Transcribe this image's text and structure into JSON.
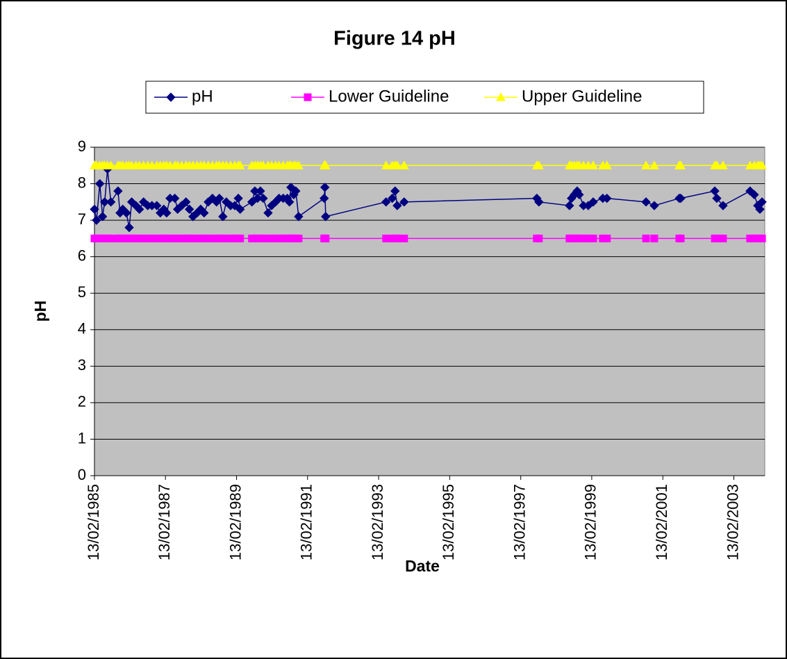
{
  "chart_data": {
    "type": "line",
    "title": "Figure 14 pH",
    "x_label": "Date",
    "y_label": "pH",
    "x": [
      "1985-02-13",
      "1985-03-06",
      "1985-04-09",
      "1985-05-07",
      "1985-05-29",
      "1985-06-27",
      "1985-08-01",
      "1985-10-13",
      "1985-11-03",
      "1985-12-01",
      "1986-01-07",
      "1986-02-05",
      "1986-03-03",
      "1986-04-15",
      "1986-05-21",
      "1986-07-03",
      "1986-08-15",
      "1986-09-27",
      "1986-11-16",
      "1986-12-22",
      "1987-01-27",
      "1987-02-25",
      "1987-04-01",
      "1987-05-20",
      "1987-06-18",
      "1987-07-30",
      "1987-09-12",
      "1987-10-17",
      "1987-11-23",
      "1988-01-04",
      "1988-02-10",
      "1988-03-16",
      "1988-04-28",
      "1988-06-10",
      "1988-07-22",
      "1988-08-20",
      "1988-09-25",
      "1988-10-31",
      "1988-12-13",
      "1989-01-25",
      "1989-03-03",
      "1989-03-22",
      "1989-07-21",
      "1989-08-20",
      "1989-09-17",
      "1989-10-16",
      "1989-11-14",
      "1990-01-03",
      "1990-02-08",
      "1990-03-21",
      "1990-04-26",
      "1990-06-08",
      "1990-07-20",
      "1990-08-11",
      "1990-08-26",
      "1990-09-24",
      "1990-10-15",
      "1990-11-13",
      "1991-08-03",
      "1991-08-10",
      "1991-08-18",
      "1993-04-30",
      "1993-07-03",
      "1993-08-01",
      "1993-08-23",
      "1993-11-02",
      "1997-07-28",
      "1997-08-19",
      "1998-06-29",
      "1998-07-20",
      "1998-08-18",
      "1998-09-16",
      "1998-10-07",
      "1998-11-20",
      "1999-01-08",
      "1999-02-28",
      "1999-06-07",
      "1999-07-19",
      "2000-08-24",
      "2000-11-17",
      "2001-08-01",
      "2001-08-16",
      "2002-08-01",
      "2002-08-22",
      "2002-10-25",
      "2003-07-30",
      "2003-09-11",
      "2003-10-17",
      "2003-11-08",
      "2003-11-30"
    ],
    "series": [
      {
        "name": "pH",
        "color": "#000080",
        "marker": "diamond",
        "values": [
          7.3,
          7.0,
          8.0,
          7.1,
          7.5,
          8.4,
          7.5,
          7.8,
          7.2,
          7.3,
          7.2,
          6.8,
          7.5,
          7.4,
          7.3,
          7.5,
          7.4,
          7.4,
          7.4,
          7.2,
          7.3,
          7.2,
          7.6,
          7.6,
          7.3,
          7.4,
          7.5,
          7.3,
          7.1,
          7.2,
          7.3,
          7.2,
          7.5,
          7.6,
          7.5,
          7.6,
          7.1,
          7.5,
          7.4,
          7.4,
          7.6,
          7.3,
          7.5,
          7.8,
          7.6,
          7.8,
          7.6,
          7.2,
          7.4,
          7.5,
          7.6,
          7.6,
          7.6,
          7.5,
          7.9,
          7.7,
          7.8,
          7.1,
          7.6,
          7.9,
          7.1,
          7.5,
          7.6,
          7.8,
          7.4,
          7.5,
          7.6,
          7.5,
          7.4,
          7.6,
          7.7,
          7.8,
          7.7,
          7.4,
          7.4,
          7.5,
          7.6,
          7.6,
          7.5,
          7.4,
          7.6,
          7.6,
          7.8,
          7.6,
          7.4,
          7.8,
          7.7,
          7.4,
          7.3,
          7.5
        ]
      },
      {
        "name": "Lower Guideline",
        "color": "#ff00ff",
        "marker": "square",
        "values": [
          6.5,
          6.5,
          6.5,
          6.5,
          6.5,
          6.5,
          6.5,
          6.5,
          6.5,
          6.5,
          6.5,
          6.5,
          6.5,
          6.5,
          6.5,
          6.5,
          6.5,
          6.5,
          6.5,
          6.5,
          6.5,
          6.5,
          6.5,
          6.5,
          6.5,
          6.5,
          6.5,
          6.5,
          6.5,
          6.5,
          6.5,
          6.5,
          6.5,
          6.5,
          6.5,
          6.5,
          6.5,
          6.5,
          6.5,
          6.5,
          6.5,
          6.5,
          6.5,
          6.5,
          6.5,
          6.5,
          6.5,
          6.5,
          6.5,
          6.5,
          6.5,
          6.5,
          6.5,
          6.5,
          6.5,
          6.5,
          6.5,
          6.5,
          6.5,
          6.5,
          6.5,
          6.5,
          6.5,
          6.5,
          6.5,
          6.5,
          6.5,
          6.5,
          6.5,
          6.5,
          6.5,
          6.5,
          6.5,
          6.5,
          6.5,
          6.5,
          6.5,
          6.5,
          6.5,
          6.5,
          6.5,
          6.5,
          6.5,
          6.5,
          6.5,
          6.5,
          6.5,
          6.5,
          6.5,
          6.5
        ]
      },
      {
        "name": "Upper Guideline",
        "color": "#ffff00",
        "marker": "triangle",
        "values": [
          8.5,
          8.5,
          8.5,
          8.5,
          8.5,
          8.5,
          8.5,
          8.5,
          8.5,
          8.5,
          8.5,
          8.5,
          8.5,
          8.5,
          8.5,
          8.5,
          8.5,
          8.5,
          8.5,
          8.5,
          8.5,
          8.5,
          8.5,
          8.5,
          8.5,
          8.5,
          8.5,
          8.5,
          8.5,
          8.5,
          8.5,
          8.5,
          8.5,
          8.5,
          8.5,
          8.5,
          8.5,
          8.5,
          8.5,
          8.5,
          8.5,
          8.5,
          8.5,
          8.5,
          8.5,
          8.5,
          8.5,
          8.5,
          8.5,
          8.5,
          8.5,
          8.5,
          8.5,
          8.5,
          8.5,
          8.5,
          8.5,
          8.5,
          8.5,
          8.5,
          8.5,
          8.5,
          8.5,
          8.5,
          8.5,
          8.5,
          8.5,
          8.5,
          8.5,
          8.5,
          8.5,
          8.5,
          8.5,
          8.5,
          8.5,
          8.5,
          8.5,
          8.5,
          8.5,
          8.5,
          8.5,
          8.5,
          8.5,
          8.5,
          8.5,
          8.5,
          8.5,
          8.5,
          8.5,
          8.5
        ]
      }
    ],
    "xlim": [
      "1985-02-13",
      "2003-12-28"
    ],
    "xticks": [
      {
        "value": "1985-02-13",
        "label": "13/02/1985"
      },
      {
        "value": "1987-02-13",
        "label": "13/02/1987"
      },
      {
        "value": "1989-02-13",
        "label": "13/02/1989"
      },
      {
        "value": "1991-02-13",
        "label": "13/02/1991"
      },
      {
        "value": "1993-02-13",
        "label": "13/02/1993"
      },
      {
        "value": "1995-02-13",
        "label": "13/02/1995"
      },
      {
        "value": "1997-02-13",
        "label": "13/02/1997"
      },
      {
        "value": "1999-02-13",
        "label": "13/02/1999"
      },
      {
        "value": "2001-02-13",
        "label": "13/02/2001"
      },
      {
        "value": "2003-02-13",
        "label": "13/02/2003"
      }
    ],
    "ylim": [
      0,
      9
    ],
    "yticks": [
      0,
      1,
      2,
      3,
      4,
      5,
      6,
      7,
      8,
      9
    ],
    "grid": true,
    "legend": "top",
    "plot_background": "#c0c0c0"
  }
}
